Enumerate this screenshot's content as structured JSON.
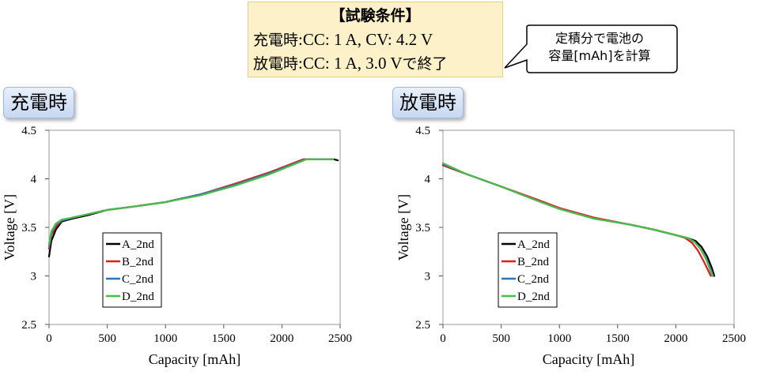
{
  "conditions": {
    "title": "【試験条件】",
    "charge_label": "充電時",
    "charge_value": ":CC: 1 A, CV: 4.2 V",
    "discharge_label": "放電時",
    "discharge_value": ":CC: 1 A, 3.0 V",
    "discharge_suffix": "で終了"
  },
  "callout": {
    "line1": "定積分で電池の",
    "line2": "容量[mAh]を計算"
  },
  "panels": {
    "charge_label": "充電時",
    "discharge_label": "放電時"
  },
  "chart_data": [
    {
      "type": "line",
      "title": "充電時",
      "xlabel": "Capacity [mAh]",
      "ylabel": "Voltage [V]",
      "xlim": [
        0,
        2500
      ],
      "ylim": [
        2.5,
        4.5
      ],
      "xticks": [
        "0",
        "500",
        "1000",
        "1500",
        "2000",
        "2500"
      ],
      "yticks": [
        "2.5",
        "3",
        "3.5",
        "4",
        "4.5"
      ],
      "grid": false,
      "legend": "bottom-left",
      "series": [
        {
          "name": "A_2nd",
          "color": "#000000",
          "x": [
            0,
            20,
            60,
            110,
            200,
            350,
            500,
            700,
            1000,
            1300,
            1600,
            1900,
            2190,
            2250,
            2350,
            2450,
            2480
          ],
          "y": [
            3.2,
            3.36,
            3.48,
            3.56,
            3.59,
            3.63,
            3.68,
            3.71,
            3.76,
            3.84,
            3.94,
            4.06,
            4.2,
            4.2,
            4.2,
            4.2,
            4.19
          ]
        },
        {
          "name": "B_2nd",
          "color": "#e41a1c",
          "x": [
            0,
            20,
            60,
            110,
            200,
            350,
            500,
            700,
            1000,
            1300,
            1600,
            1900,
            2180,
            2250,
            2350,
            2440
          ],
          "y": [
            3.28,
            3.42,
            3.51,
            3.57,
            3.6,
            3.64,
            3.68,
            3.71,
            3.76,
            3.84,
            3.95,
            4.07,
            4.2,
            4.2,
            4.2,
            4.2
          ]
        },
        {
          "name": "C_2nd",
          "color": "#2e75b6",
          "x": [
            0,
            20,
            60,
            110,
            200,
            350,
            500,
            700,
            1000,
            1300,
            1600,
            1900,
            2200,
            2250,
            2350,
            2440
          ],
          "y": [
            3.3,
            3.44,
            3.53,
            3.57,
            3.6,
            3.64,
            3.68,
            3.71,
            3.76,
            3.84,
            3.94,
            4.06,
            4.2,
            4.2,
            4.2,
            4.2
          ]
        },
        {
          "name": "D_2nd",
          "color": "#4cbb47",
          "x": [
            0,
            20,
            60,
            110,
            200,
            350,
            500,
            700,
            1000,
            1300,
            1600,
            1900,
            2210,
            2250,
            2350,
            2440
          ],
          "y": [
            3.33,
            3.46,
            3.54,
            3.58,
            3.6,
            3.64,
            3.68,
            3.71,
            3.76,
            3.83,
            3.93,
            4.05,
            4.2,
            4.2,
            4.2,
            4.2
          ]
        }
      ]
    },
    {
      "type": "line",
      "title": "放電時",
      "xlabel": "Capacity [mAh]",
      "ylabel": "Voltage [V]",
      "xlim": [
        0,
        2500
      ],
      "ylim": [
        2.5,
        4.5
      ],
      "xticks": [
        "0",
        "500",
        "1000",
        "1500",
        "2000",
        "2500"
      ],
      "yticks": [
        "2.5",
        "3",
        "3.5",
        "4",
        "4.5"
      ],
      "grid": false,
      "legend": "bottom-right",
      "series": [
        {
          "name": "A_2nd",
          "color": "#000000",
          "x": [
            0,
            200,
            500,
            800,
            1000,
            1300,
            1600,
            1800,
            2000,
            2100,
            2170,
            2220,
            2270,
            2310,
            2330
          ],
          "y": [
            4.14,
            4.05,
            3.92,
            3.78,
            3.69,
            3.59,
            3.53,
            3.48,
            3.42,
            3.39,
            3.36,
            3.3,
            3.2,
            3.08,
            3.0
          ]
        },
        {
          "name": "B_2nd",
          "color": "#e41a1c",
          "x": [
            0,
            200,
            500,
            800,
            1000,
            1300,
            1600,
            1800,
            2000,
            2080,
            2140,
            2190,
            2240,
            2280,
            2300
          ],
          "y": [
            4.14,
            4.05,
            3.92,
            3.79,
            3.7,
            3.6,
            3.53,
            3.48,
            3.42,
            3.39,
            3.34,
            3.26,
            3.15,
            3.05,
            3.0
          ]
        },
        {
          "name": "C_2nd",
          "color": "#2e75b6",
          "x": [
            0,
            200,
            500,
            800,
            1000,
            1300,
            1600,
            1800,
            2000,
            2100,
            2160,
            2210,
            2260,
            2300,
            2320
          ],
          "y": [
            4.15,
            4.05,
            3.92,
            3.78,
            3.69,
            3.59,
            3.53,
            3.48,
            3.42,
            3.39,
            3.35,
            3.28,
            3.18,
            3.07,
            3.0
          ]
        },
        {
          "name": "D_2nd",
          "color": "#4cbb47",
          "x": [
            0,
            200,
            500,
            800,
            1000,
            1300,
            1600,
            1800,
            2000,
            2100,
            2160,
            2210,
            2260,
            2295,
            2315
          ],
          "y": [
            4.16,
            4.05,
            3.92,
            3.78,
            3.69,
            3.59,
            3.53,
            3.48,
            3.42,
            3.39,
            3.35,
            3.28,
            3.17,
            3.06,
            3.0
          ]
        }
      ]
    }
  ]
}
